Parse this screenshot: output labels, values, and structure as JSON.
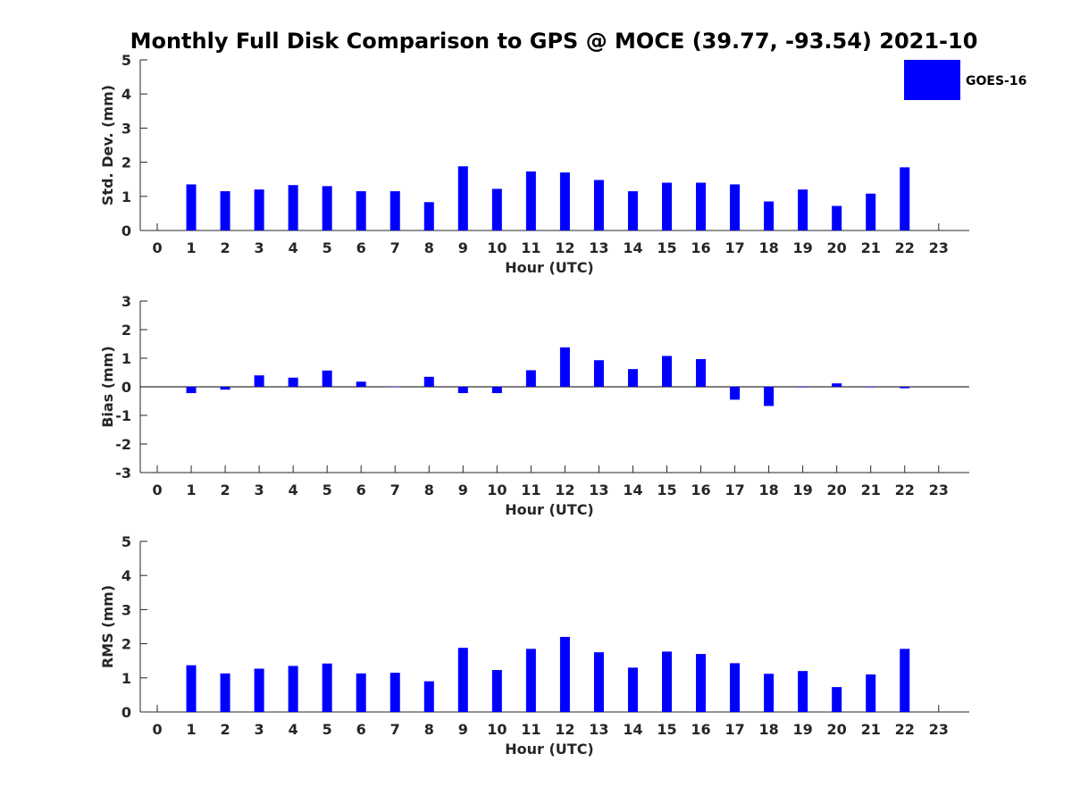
{
  "title": "Monthly Full Disk Comparison to GPS @ MOCE (39.77, -93.54) 2021-10",
  "bar_color": "#0000ff",
  "legend": {
    "label": "GOES-16",
    "placement": "top-right"
  },
  "chart_data": [
    {
      "type": "bar",
      "name": "std",
      "ylabel": "Std. Dev. (mm)",
      "xlabel": "Hour (UTC)",
      "x": [
        0,
        1,
        2,
        3,
        4,
        5,
        6,
        7,
        8,
        9,
        10,
        11,
        12,
        13,
        14,
        15,
        16,
        17,
        18,
        19,
        20,
        21,
        22,
        23
      ],
      "xlim": [
        -0.5,
        23.9
      ],
      "ylim": [
        0,
        5
      ],
      "yticks": [
        0,
        1,
        2,
        3,
        4,
        5
      ],
      "values": [
        null,
        1.35,
        1.15,
        1.2,
        1.33,
        1.3,
        1.15,
        1.15,
        0.83,
        1.88,
        1.22,
        1.73,
        1.7,
        1.48,
        1.15,
        1.4,
        1.4,
        1.35,
        0.85,
        1.2,
        0.72,
        1.08,
        1.85,
        null
      ]
    },
    {
      "type": "bar",
      "name": "bias",
      "ylabel": "Bias (mm)",
      "xlabel": "Hour (UTC)",
      "x": [
        0,
        1,
        2,
        3,
        4,
        5,
        6,
        7,
        8,
        9,
        10,
        11,
        12,
        13,
        14,
        15,
        16,
        17,
        18,
        19,
        20,
        21,
        22,
        23
      ],
      "xlim": [
        -0.5,
        23.9
      ],
      "ylim": [
        -3,
        3
      ],
      "yticks": [
        -3,
        -2,
        -1,
        0,
        1,
        2,
        3
      ],
      "values": [
        null,
        -0.22,
        -0.1,
        0.4,
        0.32,
        0.57,
        0.18,
        0.0,
        0.35,
        -0.22,
        -0.22,
        0.58,
        1.38,
        0.93,
        0.62,
        1.08,
        0.97,
        -0.45,
        -0.67,
        -0.02,
        0.12,
        -0.02,
        -0.05,
        null
      ]
    },
    {
      "type": "bar",
      "name": "rms",
      "ylabel": "RMS (mm)",
      "xlabel": "Hour (UTC)",
      "x": [
        0,
        1,
        2,
        3,
        4,
        5,
        6,
        7,
        8,
        9,
        10,
        11,
        12,
        13,
        14,
        15,
        16,
        17,
        18,
        19,
        20,
        21,
        22,
        23
      ],
      "xlim": [
        -0.5,
        23.9
      ],
      "ylim": [
        0,
        5
      ],
      "yticks": [
        0,
        1,
        2,
        3,
        4,
        5
      ],
      "values": [
        null,
        1.37,
        1.13,
        1.27,
        1.35,
        1.42,
        1.13,
        1.15,
        0.9,
        1.88,
        1.23,
        1.85,
        2.2,
        1.75,
        1.3,
        1.77,
        1.7,
        1.43,
        1.12,
        1.2,
        0.73,
        1.1,
        1.85,
        null
      ]
    }
  ]
}
